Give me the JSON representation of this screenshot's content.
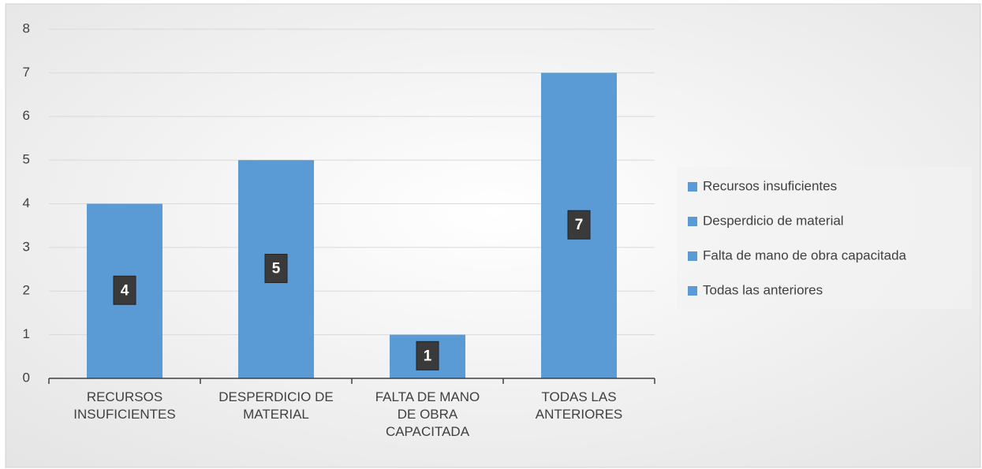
{
  "chart_data": {
    "type": "bar",
    "categories": [
      "RECURSOS INSUFICIENTES",
      "DESPERDICIO DE MATERIAL",
      "FALTA DE MANO DE OBRA CAPACITADA",
      "TODAS LAS ANTERIORES"
    ],
    "values": [
      4,
      5,
      1,
      7
    ],
    "color": "#5b9bd5",
    "ylim": [
      0,
      8
    ],
    "yticks": [
      0,
      1,
      2,
      3,
      4,
      5,
      6,
      7,
      8
    ],
    "grid": true,
    "legend": [
      "Recursos insuficientes",
      "Desperdicio de material",
      "Falta de mano de obra capacitada",
      "Todas las anteriores"
    ],
    "legend_position": "right"
  }
}
